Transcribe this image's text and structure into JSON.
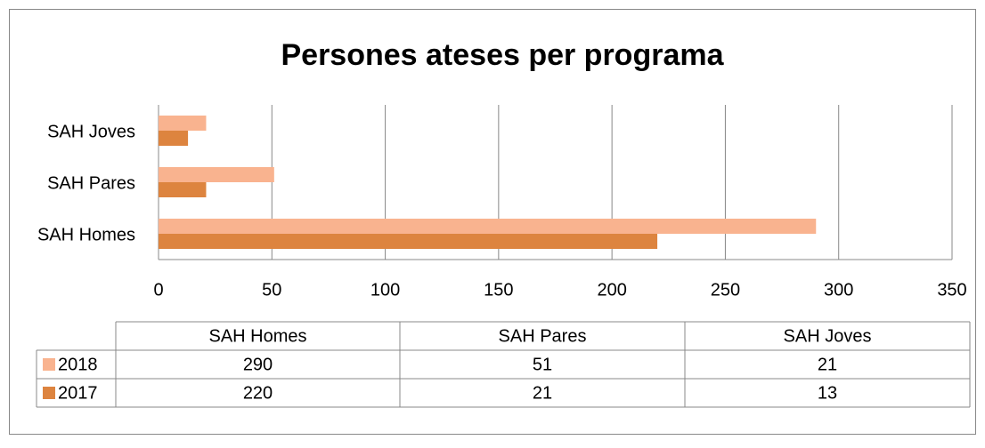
{
  "chart_data": {
    "type": "bar",
    "orientation": "horizontal",
    "title": "Persones ateses per programa",
    "categories": [
      "SAH Homes",
      "SAH Pares",
      "SAH Joves"
    ],
    "series": [
      {
        "name": "2018",
        "color": "#f9b38f",
        "values": [
          290,
          51,
          21
        ]
      },
      {
        "name": "2017",
        "color": "#dd843f",
        "values": [
          220,
          21,
          13
        ]
      }
    ],
    "xlim": [
      0,
      350
    ],
    "xticks": [
      0,
      50,
      100,
      150,
      200,
      250,
      300,
      350
    ],
    "grid": true,
    "data_table": true
  }
}
